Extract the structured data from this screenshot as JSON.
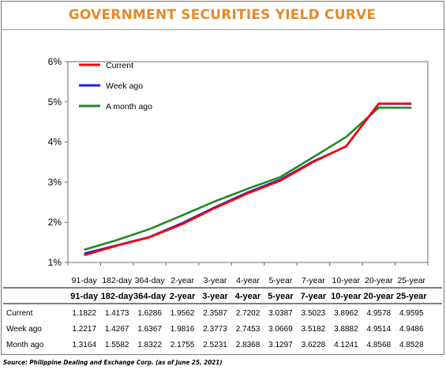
{
  "chart_data": {
    "type": "line",
    "title": "GOVERNMENT SECURITIES YIELD CURVE",
    "categories": [
      "91-day",
      "182-day",
      "364-day",
      "2-year",
      "3-year",
      "4-year",
      "5-year",
      "7-year",
      "10-year",
      "20-year",
      "25-year"
    ],
    "y_ticks": [
      "1%",
      "2%",
      "3%",
      "4%",
      "5%",
      "6%"
    ],
    "ylim": [
      1,
      6
    ],
    "legend_position": "top-left",
    "grid": false,
    "series": [
      {
        "name": "Current",
        "color": "#ff0000",
        "values": [
          1.1822,
          1.4173,
          1.6286,
          1.9562,
          2.3587,
          2.7202,
          3.0387,
          3.5023,
          3.8962,
          4.9578,
          4.9595
        ]
      },
      {
        "name": "Week ago",
        "color": "#1f1fdd",
        "values": [
          1.2217,
          1.4267,
          1.6367,
          1.9816,
          2.3773,
          2.7453,
          3.0669,
          3.5182,
          3.8882,
          4.9514,
          4.9486
        ]
      },
      {
        "name": "A month ago",
        "color": "#1f8a1f",
        "values": [
          1.3164,
          1.5582,
          1.8322,
          2.1755,
          2.5231,
          2.8368,
          3.1297,
          3.6228,
          4.1241,
          4.8568,
          4.8528
        ]
      }
    ],
    "table": {
      "headers": [
        "91-day",
        "182-day",
        "364-day",
        "2-year",
        "3-year",
        "4-year",
        "5-year",
        "7-year",
        "10-year",
        "20-year",
        "25-year"
      ],
      "rows": [
        {
          "label": "Current",
          "values": [
            "1.1822",
            "1.4173",
            "1.6286",
            "1.9562",
            "2.3587",
            "2.7202",
            "3.0387",
            "3.5023",
            "3.8962",
            "4.9578",
            "4.9595"
          ]
        },
        {
          "label": "Week ago",
          "values": [
            "1.2217",
            "1.4267",
            "1.6367",
            "1.9816",
            "2.3773",
            "2.7453",
            "3.0669",
            "3.5182",
            "3.8882",
            "4.9514",
            "4.9486"
          ]
        },
        {
          "label": "Month ago",
          "values": [
            "1.3164",
            "1.5582",
            "1.8322",
            "2.1755",
            "2.5231",
            "2.8368",
            "3.1297",
            "3.6228",
            "4.1241",
            "4.8568",
            "4.8528"
          ]
        }
      ]
    }
  },
  "source": "Source: Philippine Dealing and Exchange Corp. (as of June 25, 2021)"
}
